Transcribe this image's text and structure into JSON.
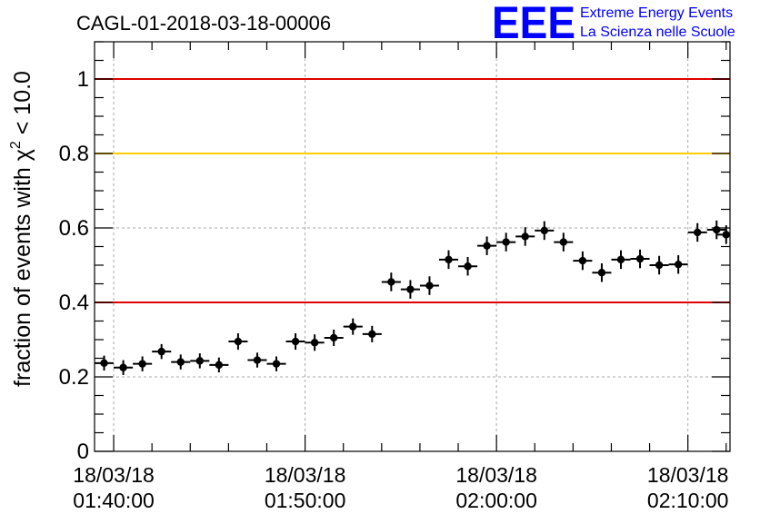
{
  "header": {
    "title": "CAGL-01-2018-03-18-00006"
  },
  "logo": {
    "text": "EEE",
    "line1": "Extreme Energy Events",
    "line2": "La Scienza nelle Scuole",
    "color": "#0000ff"
  },
  "colors": {
    "red": "#e00000",
    "orange": "#ffcc00",
    "marker": "#000000"
  },
  "chart_data": {
    "type": "scatter",
    "title": "CAGL-01-2018-03-18-00006",
    "ylabel_main": "fraction of events with χ",
    "ylabel_sup": "2",
    "ylabel_tail": " < 10.0",
    "xlabel": "",
    "x_unit": "minutes",
    "xlim": [
      -1.0,
      32.2
    ],
    "ylim": [
      0,
      1.1
    ],
    "grid": true,
    "y_ticks": [
      0,
      0.2,
      0.4,
      0.6,
      0.8,
      1
    ],
    "y_tick_labels": [
      "0",
      "0.2",
      "0.4",
      "0.6",
      "0.8",
      "1"
    ],
    "x_major_ticks": [
      0,
      10,
      20,
      30
    ],
    "x_tick_labels": [
      {
        "date": "18/03/18",
        "time": "01:40:00"
      },
      {
        "date": "18/03/18",
        "time": "01:50:00"
      },
      {
        "date": "18/03/18",
        "time": "02:00:00"
      },
      {
        "date": "18/03/18",
        "time": "02:10:00"
      }
    ],
    "x_minor_ticks": [
      2,
      4,
      6,
      8,
      12,
      14,
      16,
      18,
      22,
      24,
      26,
      28,
      32
    ],
    "reference_lines": [
      {
        "y": 1.0,
        "color": "red"
      },
      {
        "y": 0.8,
        "color": "orange"
      },
      {
        "y": 0.4,
        "color": "red"
      }
    ],
    "x_half_width": 0.5,
    "points": [
      {
        "x": -0.5,
        "y": 0.237,
        "err": 0.02
      },
      {
        "x": 0.5,
        "y": 0.225,
        "err": 0.02
      },
      {
        "x": 1.5,
        "y": 0.235,
        "err": 0.02
      },
      {
        "x": 2.5,
        "y": 0.268,
        "err": 0.02
      },
      {
        "x": 3.5,
        "y": 0.24,
        "err": 0.02
      },
      {
        "x": 4.5,
        "y": 0.243,
        "err": 0.02
      },
      {
        "x": 5.5,
        "y": 0.232,
        "err": 0.02
      },
      {
        "x": 6.5,
        "y": 0.295,
        "err": 0.022
      },
      {
        "x": 7.5,
        "y": 0.245,
        "err": 0.02
      },
      {
        "x": 8.5,
        "y": 0.235,
        "err": 0.02
      },
      {
        "x": 9.5,
        "y": 0.295,
        "err": 0.022
      },
      {
        "x": 10.5,
        "y": 0.292,
        "err": 0.022
      },
      {
        "x": 11.5,
        "y": 0.305,
        "err": 0.022
      },
      {
        "x": 12.5,
        "y": 0.335,
        "err": 0.022
      },
      {
        "x": 13.5,
        "y": 0.315,
        "err": 0.022
      },
      {
        "x": 14.5,
        "y": 0.455,
        "err": 0.025
      },
      {
        "x": 15.5,
        "y": 0.435,
        "err": 0.025
      },
      {
        "x": 16.5,
        "y": 0.445,
        "err": 0.025
      },
      {
        "x": 17.5,
        "y": 0.515,
        "err": 0.025
      },
      {
        "x": 18.5,
        "y": 0.497,
        "err": 0.025
      },
      {
        "x": 19.5,
        "y": 0.552,
        "err": 0.025
      },
      {
        "x": 20.5,
        "y": 0.562,
        "err": 0.025
      },
      {
        "x": 21.5,
        "y": 0.577,
        "err": 0.025
      },
      {
        "x": 22.5,
        "y": 0.593,
        "err": 0.025
      },
      {
        "x": 23.5,
        "y": 0.562,
        "err": 0.025
      },
      {
        "x": 24.5,
        "y": 0.512,
        "err": 0.025
      },
      {
        "x": 25.5,
        "y": 0.48,
        "err": 0.025
      },
      {
        "x": 26.5,
        "y": 0.515,
        "err": 0.025
      },
      {
        "x": 27.5,
        "y": 0.517,
        "err": 0.025
      },
      {
        "x": 28.5,
        "y": 0.5,
        "err": 0.025
      },
      {
        "x": 29.5,
        "y": 0.502,
        "err": 0.025
      },
      {
        "x": 30.5,
        "y": 0.588,
        "err": 0.025
      },
      {
        "x": 31.5,
        "y": 0.595,
        "err": 0.025
      },
      {
        "x": 32.0,
        "y": 0.582,
        "err": 0.025
      }
    ]
  }
}
